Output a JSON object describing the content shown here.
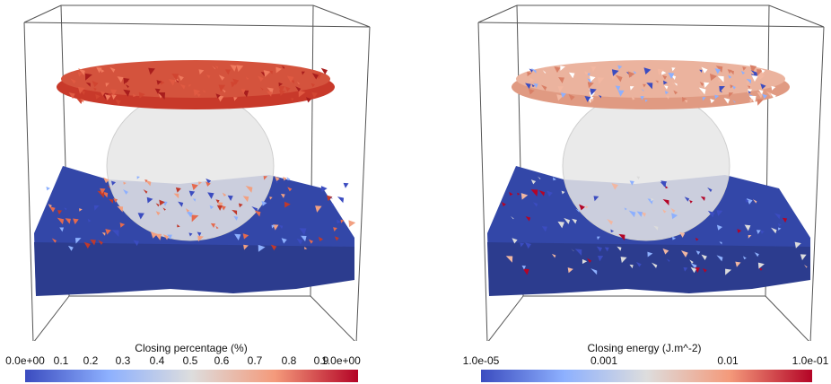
{
  "left_panel": {
    "colorbar": {
      "title": "Closing percentage (%)",
      "ticks": [
        "0.0e+00",
        "0.1",
        "0.2",
        "0.3",
        "0.4",
        "0.5",
        "0.6",
        "0.7",
        "0.8",
        "0.9",
        "1.0e+00"
      ],
      "colormap": [
        "#3b4cc0",
        "#8db0fe",
        "#dddddd",
        "#f49a7b",
        "#b40426"
      ]
    },
    "upper_disc_color": "#c8392a",
    "sphere_color": "#e8e8e8",
    "slab_color": "#2f3f8f"
  },
  "right_panel": {
    "colorbar": {
      "title": "Closing energy (J.m^-2)",
      "ticks": [
        "1.0e-05",
        "0.001",
        "0.01",
        "1.0e-01"
      ],
      "colormap": [
        "#3b4cc0",
        "#8db0fe",
        "#dddddd",
        "#f49a7b",
        "#b40426"
      ]
    },
    "upper_disc_color": "#e7a28a",
    "sphere_color": "#e8e8e8",
    "slab_color": "#2f3f8f"
  }
}
